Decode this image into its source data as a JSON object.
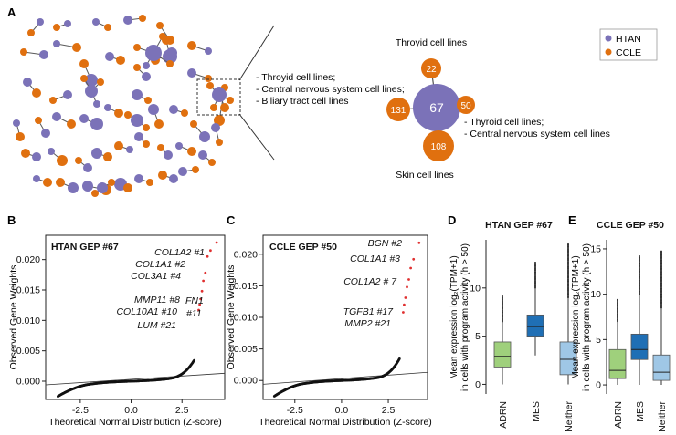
{
  "figure": {
    "panel_labels": [
      "A",
      "B",
      "C",
      "D",
      "E"
    ],
    "colors": {
      "htan": "#7b72b8",
      "ccle": "#e0700f",
      "edge": "#5a5a5a",
      "adrn": "#9fd07c",
      "mes": "#1f6fb5",
      "neither": "#9fc7e6",
      "red": "#e03030"
    }
  },
  "panel_a": {
    "legend": [
      {
        "label": "HTAN",
        "color": "#7b72b8"
      },
      {
        "label": "CCLE",
        "color": "#e0700f"
      }
    ],
    "zoom_annotation": [
      "- Throyid cell lines;",
      "- Central nervous system cell lines;",
      "- Biliary tract cell lines"
    ],
    "hub": {
      "label": "67"
    },
    "satellites": [
      {
        "label": "22",
        "caption": "Throyid cell lines"
      },
      {
        "label": "50",
        "caption_lines": [
          "- Thyroid cell lines;",
          "- Central nervous system cell lines"
        ]
      },
      {
        "label": "131",
        "caption": ""
      },
      {
        "label": "108",
        "caption": "Skin cell lines"
      }
    ]
  },
  "chart_data": [
    {
      "type": "scatter",
      "panel": "B",
      "title": "HTAN GEP #67",
      "xlabel": "Theoretical Normal Distribution (Z-score)",
      "ylabel": "Observed Gene Weights",
      "xlim": [
        -4.2,
        4.6
      ],
      "ylim": [
        -0.003,
        0.024
      ],
      "xticks": [
        "-2.5",
        "0.0",
        "2.5"
      ],
      "yticks": [
        "0.000",
        "0.005",
        "0.010",
        "0.015",
        "0.020"
      ],
      "annotations": [
        "COL1A2 #1",
        "COL1A1 #2",
        "COL3A1 #4",
        "MMP11 #8",
        "COL10A1 #10",
        "FN1",
        "#11",
        "LUM #21"
      ],
      "top_points": [
        {
          "x": 4.2,
          "y": 0.0228
        },
        {
          "x": 3.9,
          "y": 0.0215
        },
        {
          "x": 3.75,
          "y": 0.0205
        },
        {
          "x": 3.65,
          "y": 0.0178
        },
        {
          "x": 3.55,
          "y": 0.0165
        },
        {
          "x": 3.48,
          "y": 0.0148
        },
        {
          "x": 3.42,
          "y": 0.0135
        },
        {
          "x": 3.37,
          "y": 0.0126
        },
        {
          "x": 3.32,
          "y": 0.0117
        }
      ]
    },
    {
      "type": "scatter",
      "panel": "C",
      "title": "CCLE GEP #50",
      "xlabel": "Theoretical Normal Distribution (Z-score)",
      "ylabel": "Observed Gene Weights",
      "xlim": [
        -4.2,
        4.6
      ],
      "ylim": [
        -0.003,
        0.023
      ],
      "xticks": [
        "-2.5",
        "0.0",
        "2.5"
      ],
      "yticks": [
        "0.000",
        "0.005",
        "0.010",
        "0.015",
        "0.020"
      ],
      "annotations": [
        "BGN #2",
        "COL1A1 #3",
        "COL1A2 # 7",
        "TGFB1 #17",
        "MMP2 #21"
      ],
      "top_points": [
        {
          "x": 4.15,
          "y": 0.0218
        },
        {
          "x": 3.85,
          "y": 0.0192
        },
        {
          "x": 3.7,
          "y": 0.0178
        },
        {
          "x": 3.6,
          "y": 0.016
        },
        {
          "x": 3.5,
          "y": 0.0148
        },
        {
          "x": 3.42,
          "y": 0.0131
        },
        {
          "x": 3.35,
          "y": 0.012
        },
        {
          "x": 3.3,
          "y": 0.0108
        }
      ]
    },
    {
      "type": "box",
      "panel": "D",
      "title": "HTAN GEP #67",
      "ylabel_lines": [
        "Mean expression log₂(TPM+1)",
        "in cells with program activity (h > 50)"
      ],
      "ylim": [
        -1,
        15
      ],
      "yticks": [
        "0",
        "5",
        "10"
      ],
      "categories": [
        "ADRN",
        "MES",
        "Neither"
      ],
      "boxes": [
        {
          "whislo": 0.0,
          "q1": 1.8,
          "med": 2.9,
          "q3": 4.4,
          "whishi": 6.5,
          "outlier_max": 9.2
        },
        {
          "whislo": 3.0,
          "q1": 5.0,
          "med": 6.0,
          "q3": 7.2,
          "whishi": 10.0,
          "outlier_max": 12.7
        },
        {
          "whislo": 0.0,
          "q1": 1.0,
          "med": 2.6,
          "q3": 4.4,
          "whishi": 9.0,
          "outlier_max": 14.7
        }
      ]
    },
    {
      "type": "box",
      "panel": "E",
      "title": "CCLE GEP #50",
      "ylabel_lines": [
        "Mean expression log₂(TPM+1)",
        "in cells with program activity (h > 50)"
      ],
      "ylim": [
        -1,
        16
      ],
      "yticks": [
        "0",
        "5",
        "10",
        "15"
      ],
      "categories": [
        "ADRN",
        "MES",
        "Neither"
      ],
      "boxes": [
        {
          "whislo": 0.0,
          "q1": 0.7,
          "med": 1.6,
          "q3": 3.9,
          "whishi": 7.0,
          "outlier_max": 9.5
        },
        {
          "whislo": 0.0,
          "q1": 2.8,
          "med": 3.9,
          "q3": 5.6,
          "whishi": 10.0,
          "outlier_max": 14.2
        },
        {
          "whislo": 0.0,
          "q1": 0.5,
          "med": 1.4,
          "q3": 3.3,
          "whishi": 8.5,
          "outlier_max": 14.8
        }
      ]
    }
  ]
}
